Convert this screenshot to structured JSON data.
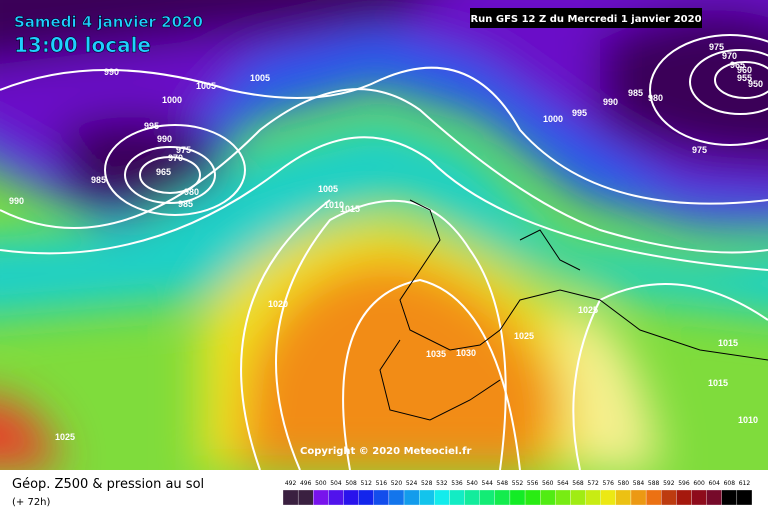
{
  "header": {
    "date": "Samedi 4 janvier 2020",
    "time": "13:00 locale",
    "run": "Run GFS 12 Z du Mercredi 1 janvier 2020"
  },
  "isobar_labels": [
    990,
    1005,
    1005,
    1000,
    995,
    990,
    975,
    970,
    965,
    985,
    980,
    985,
    990,
    1005,
    1010,
    1015,
    1020,
    1025,
    1035,
    1030,
    1025,
    1025,
    1015,
    1015,
    1010,
    1000,
    995,
    990,
    985,
    980,
    975,
    970,
    965,
    960,
    955,
    950,
    975
  ],
  "copyright": "Copyright © 2020 Meteociel.fr",
  "footer": {
    "title": "Géop. Z500 & pression au sol",
    "lead": "(+ 72h)"
  },
  "scale": [
    492,
    496,
    500,
    504,
    508,
    512,
    516,
    520,
    524,
    528,
    532,
    536,
    540,
    544,
    548,
    552,
    556,
    560,
    564,
    568,
    572,
    576,
    580,
    584,
    588,
    592,
    596,
    600,
    604,
    608,
    612
  ]
}
